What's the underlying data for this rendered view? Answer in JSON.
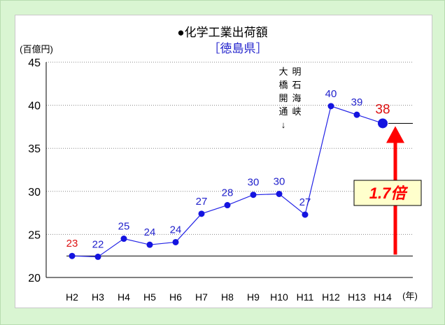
{
  "chart_data": {
    "type": "line",
    "title": "●化学工業出荷額",
    "subtitle": "［徳島県］",
    "ylabel": "(百億円)",
    "xunit": "(年)",
    "ylim": [
      20,
      45
    ],
    "yticks": [
      "20",
      "25",
      "30",
      "35",
      "40",
      "45"
    ],
    "categories": [
      "H2",
      "H3",
      "H4",
      "H5",
      "H6",
      "H7",
      "H8",
      "H9",
      "H10",
      "H11",
      "H12",
      "H13",
      "H14"
    ],
    "series": [
      {
        "values": [
          22.5,
          22.4,
          24.5,
          23.8,
          24.1,
          27.4,
          28.4,
          29.6,
          29.7,
          27.3,
          39.9,
          38.9,
          37.9
        ]
      }
    ],
    "data_labels": [
      "23",
      "22",
      "25",
      "24",
      "24",
      "27",
      "28",
      "30",
      "30",
      "27",
      "40",
      "39",
      "38"
    ],
    "annotations": {
      "bridge_col1": [
        "大",
        "橋",
        "開",
        "通",
        "↓"
      ],
      "bridge_col2": [
        "明",
        "石",
        "海",
        "峡"
      ],
      "ratio_label": "1.7倍"
    },
    "colors": {
      "line": "#2424e6",
      "marker": "#1414e0",
      "label": "#2222cc",
      "highlight_label": "#dd1111",
      "arrow": "#ff0000",
      "ratio_box_fill": "#ffffcc",
      "ratio_text": "#ff0000",
      "frame": "#d9f5d2"
    }
  }
}
